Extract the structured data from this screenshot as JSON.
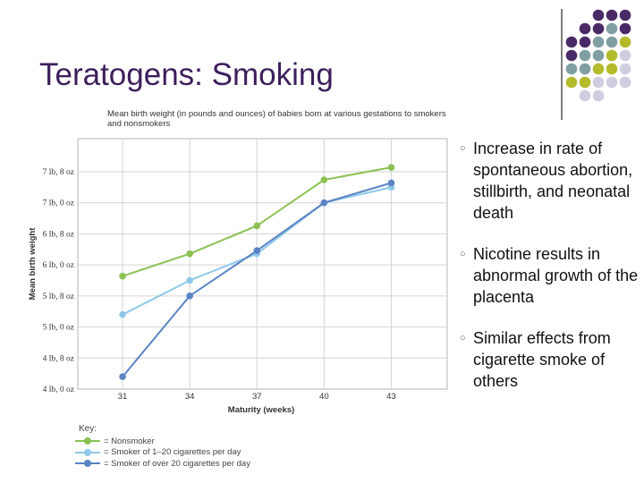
{
  "slide": {
    "title": "Teratogens: Smoking",
    "decor_colors": {
      "purple": "#4a2a66",
      "teal": "#7f9fa3",
      "olive": "#b4bb2b",
      "lavender": "#d1cde0"
    },
    "bullets": [
      "Increase in rate of spontaneous abortion, stillbirth, and neonatal death",
      "Nicotine results in abnormal growth of the placenta",
      "Similar effects from cigarette smoke of others"
    ]
  },
  "chart_data": {
    "type": "line",
    "title": "Mean birth weight (in pounds and ounces) of babies born at various gestations to smokers and nonsmokers",
    "xlabel": "Maturity (weeks)",
    "ylabel": "Mean birth weight",
    "x": [
      31,
      34,
      37,
      40,
      43
    ],
    "x_tick_labels": [
      "31",
      "34",
      "37",
      "40",
      "43"
    ],
    "ylim_pounds": [
      4.0,
      7.5
    ],
    "y_ticks_pounds": [
      4.0,
      4.5,
      5.0,
      5.5,
      6.0,
      6.5,
      7.0,
      7.5
    ],
    "y_tick_labels": [
      "4 lb, 0 oz",
      "4 lb, 8 oz",
      "5 lb, 0 oz",
      "5 lb, 8 oz",
      "6 lb, 0 oz",
      "6 lb, 8 oz",
      "7 lb, 0 oz",
      "7 lb, 8 oz"
    ],
    "key_title": "Key:",
    "series": [
      {
        "name": "= Nonsmoker",
        "color": "#8cc152",
        "values_pounds": [
          5.82,
          6.18,
          6.63,
          7.37,
          7.57
        ]
      },
      {
        "name": "= Smoker of 1–20 cigarettes per day",
        "color": "#8fc8ea",
        "values_pounds": [
          5.2,
          5.75,
          6.18,
          7.0,
          7.25
        ]
      },
      {
        "name": "= Smoker of over 20 cigarettes per day",
        "color": "#5a84c4",
        "values_pounds": [
          4.2,
          5.5,
          6.23,
          7.0,
          7.32
        ]
      }
    ],
    "grid": true
  }
}
